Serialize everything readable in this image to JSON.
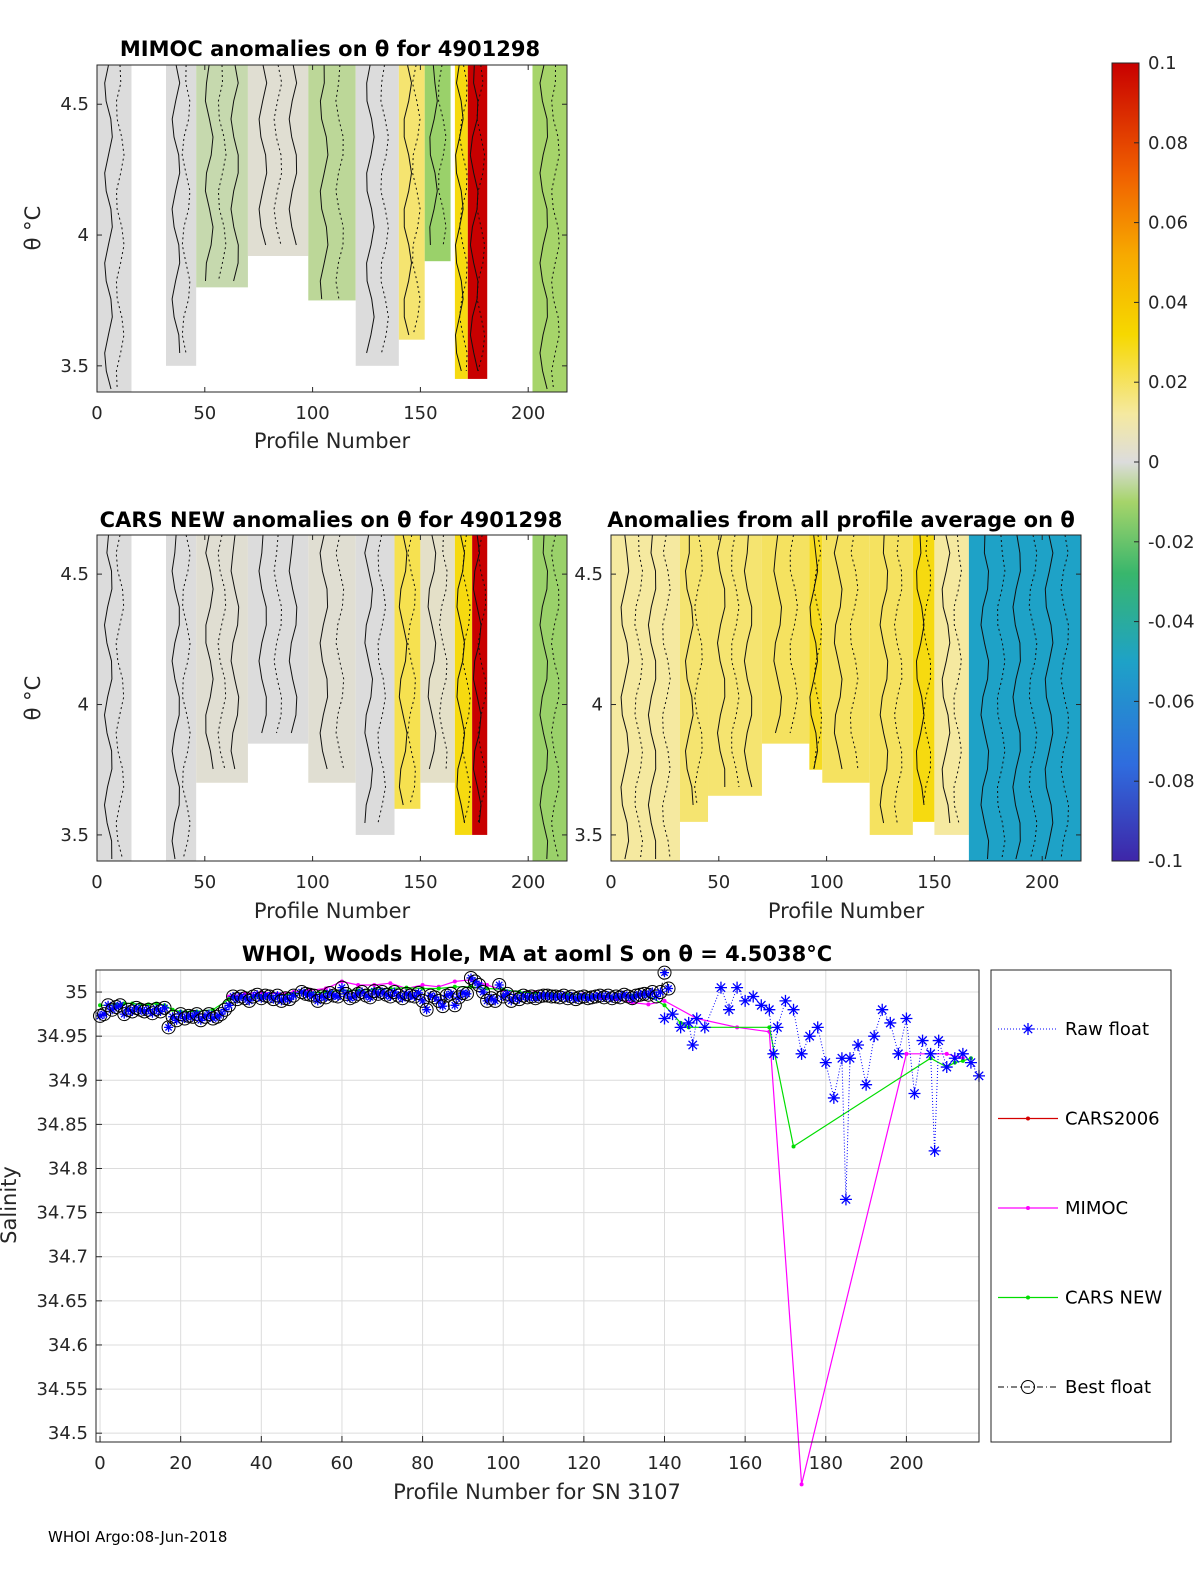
{
  "footer": "WHOI Argo:08-Jun-2018",
  "colorbar": {
    "ticks": [
      "0.1",
      "0.08",
      "0.06",
      "0.04",
      "0.02",
      "0",
      "-0.02",
      "-0.04",
      "-0.06",
      "-0.08",
      "-0.1"
    ],
    "range": [
      -0.1,
      0.1
    ],
    "colormap": "parula-to-red"
  },
  "chart_data": [
    {
      "type": "heatmap",
      "id": "mimoc",
      "title": "MIMOC anomalies on θ  for 4901298",
      "xlabel": "Profile Number",
      "ylabel": "θ °C",
      "xticks": [
        "0",
        "50",
        "100",
        "150",
        "200"
      ],
      "yticks": [
        "4.5",
        "4",
        "3.5"
      ],
      "xlim": [
        0,
        218
      ],
      "ylim": [
        3.4,
        4.65
      ],
      "bands": [
        {
          "x0": 0,
          "x1": 16,
          "ymin": 3.4,
          "value": 0.0
        },
        {
          "x0": 32,
          "x1": 46,
          "ymin": 3.5,
          "value": 0.0
        },
        {
          "x0": 46,
          "x1": 70,
          "ymin": 3.8,
          "value": -0.004
        },
        {
          "x0": 70,
          "x1": 98,
          "ymin": 3.92,
          "value": 0.002
        },
        {
          "x0": 98,
          "x1": 120,
          "ymin": 3.75,
          "value": -0.006
        },
        {
          "x0": 120,
          "x1": 140,
          "ymin": 3.5,
          "value": 0.0
        },
        {
          "x0": 140,
          "x1": 152,
          "ymin": 3.6,
          "value": 0.018
        },
        {
          "x0": 152,
          "x1": 164,
          "ymin": 3.9,
          "value": -0.012
        },
        {
          "x0": 166,
          "x1": 172,
          "ymin": 3.45,
          "value": 0.03
        },
        {
          "x0": 172,
          "x1": 181,
          "ymin": 3.45,
          "value": 0.1
        },
        {
          "x0": 202,
          "x1": 218,
          "ymin": 3.4,
          "value": -0.01
        }
      ]
    },
    {
      "type": "heatmap",
      "id": "cars-new",
      "title": "CARS NEW anomalies on θ for 4901298",
      "xlabel": "Profile Number",
      "ylabel": "θ °C",
      "xticks": [
        "0",
        "50",
        "100",
        "150",
        "200"
      ],
      "yticks": [
        "4.5",
        "4",
        "3.5"
      ],
      "xlim": [
        0,
        218
      ],
      "ylim": [
        3.4,
        4.65
      ],
      "bands": [
        {
          "x0": 0,
          "x1": 16,
          "ymin": 3.4,
          "value": 0.0
        },
        {
          "x0": 32,
          "x1": 46,
          "ymin": 3.4,
          "value": 0.0
        },
        {
          "x0": 46,
          "x1": 70,
          "ymin": 3.7,
          "value": 0.002
        },
        {
          "x0": 70,
          "x1": 98,
          "ymin": 3.85,
          "value": 0.0
        },
        {
          "x0": 98,
          "x1": 120,
          "ymin": 3.7,
          "value": 0.002
        },
        {
          "x0": 120,
          "x1": 138,
          "ymin": 3.5,
          "value": 0.0
        },
        {
          "x0": 138,
          "x1": 150,
          "ymin": 3.6,
          "value": 0.022
        },
        {
          "x0": 150,
          "x1": 166,
          "ymin": 3.7,
          "value": 0.004
        },
        {
          "x0": 166,
          "x1": 174,
          "ymin": 3.5,
          "value": 0.03
        },
        {
          "x0": 174,
          "x1": 181,
          "ymin": 3.5,
          "value": 0.1
        },
        {
          "x0": 202,
          "x1": 218,
          "ymin": 3.4,
          "value": -0.012
        }
      ]
    },
    {
      "type": "heatmap",
      "id": "all-profile",
      "title": "Anomalies from all profile average on θ",
      "xlabel": "Profile Number",
      "ylabel": "",
      "xticks": [
        "0",
        "50",
        "100",
        "150",
        "200"
      ],
      "yticks": [
        "4.5",
        "4",
        "3.5"
      ],
      "xlim": [
        0,
        218
      ],
      "ylim": [
        3.4,
        4.65
      ],
      "bands": [
        {
          "x0": 0,
          "x1": 32,
          "ymin": 3.4,
          "value": 0.012
        },
        {
          "x0": 32,
          "x1": 45,
          "ymin": 3.55,
          "value": 0.018
        },
        {
          "x0": 45,
          "x1": 70,
          "ymin": 3.65,
          "value": 0.018
        },
        {
          "x0": 70,
          "x1": 92,
          "ymin": 3.85,
          "value": 0.02
        },
        {
          "x0": 92,
          "x1": 98,
          "ymin": 3.75,
          "value": 0.028
        },
        {
          "x0": 98,
          "x1": 120,
          "ymin": 3.7,
          "value": 0.02
        },
        {
          "x0": 120,
          "x1": 140,
          "ymin": 3.5,
          "value": 0.02
        },
        {
          "x0": 140,
          "x1": 150,
          "ymin": 3.55,
          "value": 0.03
        },
        {
          "x0": 150,
          "x1": 166,
          "ymin": 3.5,
          "value": 0.012
        },
        {
          "x0": 166,
          "x1": 218,
          "ymin": 3.4,
          "value": -0.05
        }
      ]
    },
    {
      "type": "line",
      "id": "salinity",
      "title": "WHOI, Woods Hole, MA at aoml S on θ = 4.5038°C",
      "xlabel": "Profile Number for SN 3107",
      "ylabel": "Salinity",
      "xlim": [
        -1,
        218
      ],
      "ylim": [
        34.49,
        35.025
      ],
      "xticks": [
        "0",
        "20",
        "40",
        "60",
        "80",
        "100",
        "120",
        "140",
        "160",
        "180",
        "200"
      ],
      "yticks": [
        "35",
        "34.95",
        "34.9",
        "34.85",
        "34.8",
        "34.75",
        "34.7",
        "34.65",
        "34.6",
        "34.55",
        "34.5"
      ],
      "grid": true,
      "legend_position": "right",
      "series": [
        {
          "name": "Raw float",
          "color": "#0000ff",
          "x": [
            140,
            142,
            144,
            146,
            147,
            148,
            150,
            154,
            156,
            158,
            160,
            162,
            164,
            166,
            167,
            168,
            170,
            172,
            174,
            176,
            178,
            180,
            182,
            184,
            185,
            186,
            188,
            190,
            192,
            194,
            196,
            198,
            200,
            202,
            204,
            206,
            207,
            208,
            210,
            212,
            214,
            216,
            218
          ],
          "y": [
            34.97,
            34.975,
            34.96,
            34.965,
            34.94,
            34.97,
            34.96,
            35.005,
            34.98,
            35.005,
            34.99,
            34.995,
            34.985,
            34.98,
            34.93,
            34.96,
            34.99,
            34.98,
            34.93,
            34.95,
            34.96,
            34.92,
            34.88,
            34.925,
            34.765,
            34.925,
            34.94,
            34.895,
            34.95,
            34.98,
            34.965,
            34.93,
            34.97,
            34.885,
            34.945,
            34.93,
            34.82,
            34.945,
            34.915,
            34.925,
            34.93,
            34.92,
            34.905
          ]
        },
        {
          "name": "CARS2006",
          "color": "#d40000",
          "x": [],
          "y": []
        },
        {
          "name": "MIMOC",
          "color": "#ff00ff",
          "x": [
            32,
            36,
            40,
            44,
            48,
            52,
            56,
            60,
            64,
            68,
            72,
            76,
            80,
            84,
            88,
            92,
            96,
            100,
            104,
            108,
            112,
            116,
            120,
            124,
            128,
            132,
            136,
            140,
            148,
            158,
            166,
            174,
            200,
            210,
            214
          ],
          "y": [
            34.995,
            34.998,
            35.0,
            34.998,
            35.0,
            35.002,
            35.004,
            35.012,
            35.008,
            35.008,
            35.01,
            35.004,
            35.008,
            35.006,
            35.012,
            35.014,
            35.008,
            35.002,
            35.0,
            35.0,
            34.998,
            34.996,
            34.998,
            34.994,
            34.992,
            34.988,
            34.986,
            34.99,
            34.97,
            34.96,
            34.955,
            34.442,
            34.93,
            34.93,
            34.925
          ]
        },
        {
          "name": "CARS NEW",
          "color": "#00dd00",
          "x": [
            0,
            2,
            4,
            6,
            8,
            10,
            12,
            14,
            16,
            18,
            20,
            24,
            28,
            32,
            36,
            40,
            44,
            48,
            52,
            56,
            60,
            64,
            68,
            72,
            76,
            80,
            84,
            88,
            92,
            96,
            100,
            104,
            108,
            112,
            116,
            120,
            124,
            128,
            132,
            136,
            140,
            142,
            144,
            146,
            166,
            172,
            206,
            210,
            212,
            214,
            216
          ],
          "y": [
            34.985,
            34.985,
            34.986,
            34.987,
            34.987,
            34.986,
            34.986,
            34.987,
            34.985,
            34.98,
            34.978,
            34.978,
            34.98,
            34.992,
            34.993,
            34.995,
            34.996,
            34.998,
            34.999,
            35.0,
            35.002,
            35.002,
            35.003,
            35.004,
            35.005,
            35.004,
            35.004,
            35.006,
            35.006,
            35.004,
            35.003,
            35.0,
            34.999,
            34.998,
            34.997,
            34.997,
            34.996,
            34.995,
            34.996,
            34.996,
            34.985,
            34.975,
            34.965,
            34.96,
            34.96,
            34.825,
            34.925,
            34.915,
            34.92,
            34.922,
            34.925
          ]
        },
        {
          "name": "Best float",
          "color": "#000000",
          "x": [
            0,
            1,
            2,
            3,
            4,
            5,
            6,
            7,
            8,
            9,
            10,
            11,
            12,
            13,
            14,
            15,
            16,
            17,
            18,
            19,
            20,
            21,
            22,
            23,
            24,
            25,
            26,
            27,
            28,
            29,
            30,
            31,
            32,
            33,
            34,
            35,
            36,
            37,
            38,
            39,
            40,
            41,
            42,
            43,
            44,
            45,
            46,
            47,
            48,
            50,
            51,
            52,
            53,
            54,
            55,
            56,
            57,
            58,
            59,
            60,
            61,
            62,
            63,
            64,
            65,
            66,
            67,
            68,
            69,
            70,
            71,
            72,
            73,
            74,
            75,
            76,
            77,
            78,
            79,
            80,
            81,
            82,
            83,
            84,
            85,
            86,
            87,
            88,
            89,
            90,
            91,
            92,
            93,
            94,
            95,
            96,
            97,
            98,
            99,
            100,
            101,
            102,
            103,
            104,
            105,
            106,
            107,
            108,
            109,
            110,
            111,
            112,
            113,
            114,
            115,
            116,
            117,
            118,
            119,
            120,
            121,
            122,
            123,
            124,
            125,
            126,
            127,
            128,
            129,
            130,
            131,
            132,
            133,
            134,
            135,
            136,
            137,
            138,
            139,
            140,
            141
          ],
          "y": [
            34.973,
            34.975,
            34.985,
            34.98,
            34.983,
            34.985,
            34.975,
            34.98,
            34.978,
            34.982,
            34.98,
            34.978,
            34.98,
            34.976,
            34.981,
            34.978,
            34.982,
            34.96,
            34.972,
            34.968,
            34.975,
            34.97,
            34.973,
            34.972,
            34.975,
            34.968,
            34.972,
            34.975,
            34.97,
            34.972,
            34.975,
            34.98,
            34.985,
            34.995,
            34.992,
            34.995,
            34.993,
            34.99,
            34.995,
            34.997,
            34.993,
            34.996,
            34.995,
            34.992,
            34.996,
            34.99,
            34.993,
            34.992,
            34.996,
            35.0,
            34.998,
            34.997,
            34.996,
            34.99,
            34.995,
            34.994,
            34.999,
            34.996,
            34.995,
            35.005,
            34.998,
            34.993,
            34.995,
            34.998,
            35.0,
            34.996,
            34.994,
            35.001,
            34.998,
            35.0,
            34.997,
            34.995,
            35.0,
            34.996,
            34.993,
            34.998,
            34.996,
            34.995,
            34.999,
            34.99,
            34.98,
            34.996,
            34.994,
            34.99,
            34.984,
            34.996,
            34.998,
            34.985,
            34.994,
            34.999,
            34.998,
            35.016,
            35.012,
            35.008,
            35.0,
            34.99,
            34.993,
            34.99,
            35.008,
            34.995,
            34.998,
            34.99,
            34.994,
            34.992,
            34.996,
            34.994,
            34.995,
            34.993,
            34.995,
            34.996,
            34.996,
            34.995,
            34.995,
            34.994,
            34.996,
            34.993,
            34.995,
            34.992,
            34.994,
            34.995,
            34.993,
            34.994,
            34.995,
            34.996,
            34.994,
            34.996,
            34.993,
            34.995,
            34.994,
            34.997,
            34.995,
            34.993,
            34.996,
            34.997,
            34.998,
            34.997,
            35.0,
            34.995,
            35.0,
            35.022,
            35.004
          ]
        }
      ]
    }
  ]
}
